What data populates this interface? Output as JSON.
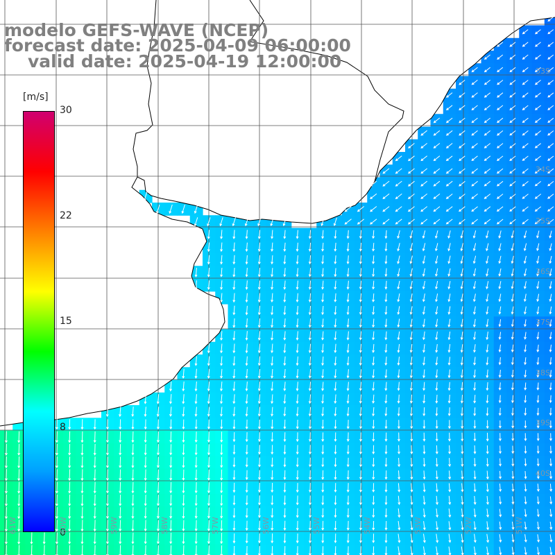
{
  "title": {
    "line1": "modelo GEFS-WAVE (NCEP)",
    "line2": "forecast date: 2025-04-09 06:00:00",
    "line3": "valid date: 2025-04-19 12:00:00"
  },
  "colorbar": {
    "unit": "[m/s]",
    "ticks": [
      "30",
      "22",
      "15",
      "8",
      "0"
    ],
    "min": 0,
    "max": 30,
    "colors": [
      "#0000ff",
      "#00a0ff",
      "#00ffff",
      "#00ff00",
      "#ffff00",
      "#ff8000",
      "#ff0000",
      "#d00070"
    ]
  },
  "map": {
    "land_color": "#ffffff",
    "grid_color": "#555555",
    "arrow_color": "#ffffff",
    "lat_labels": [
      "33S",
      "34S",
      "35S",
      "36S",
      "37S",
      "38S",
      "39S",
      "40S"
    ],
    "lon_labels": [
      "61W",
      "60W",
      "59W",
      "58W",
      "57W",
      "56W",
      "55W",
      "54W",
      "53W",
      "52W",
      "51W"
    ]
  }
}
